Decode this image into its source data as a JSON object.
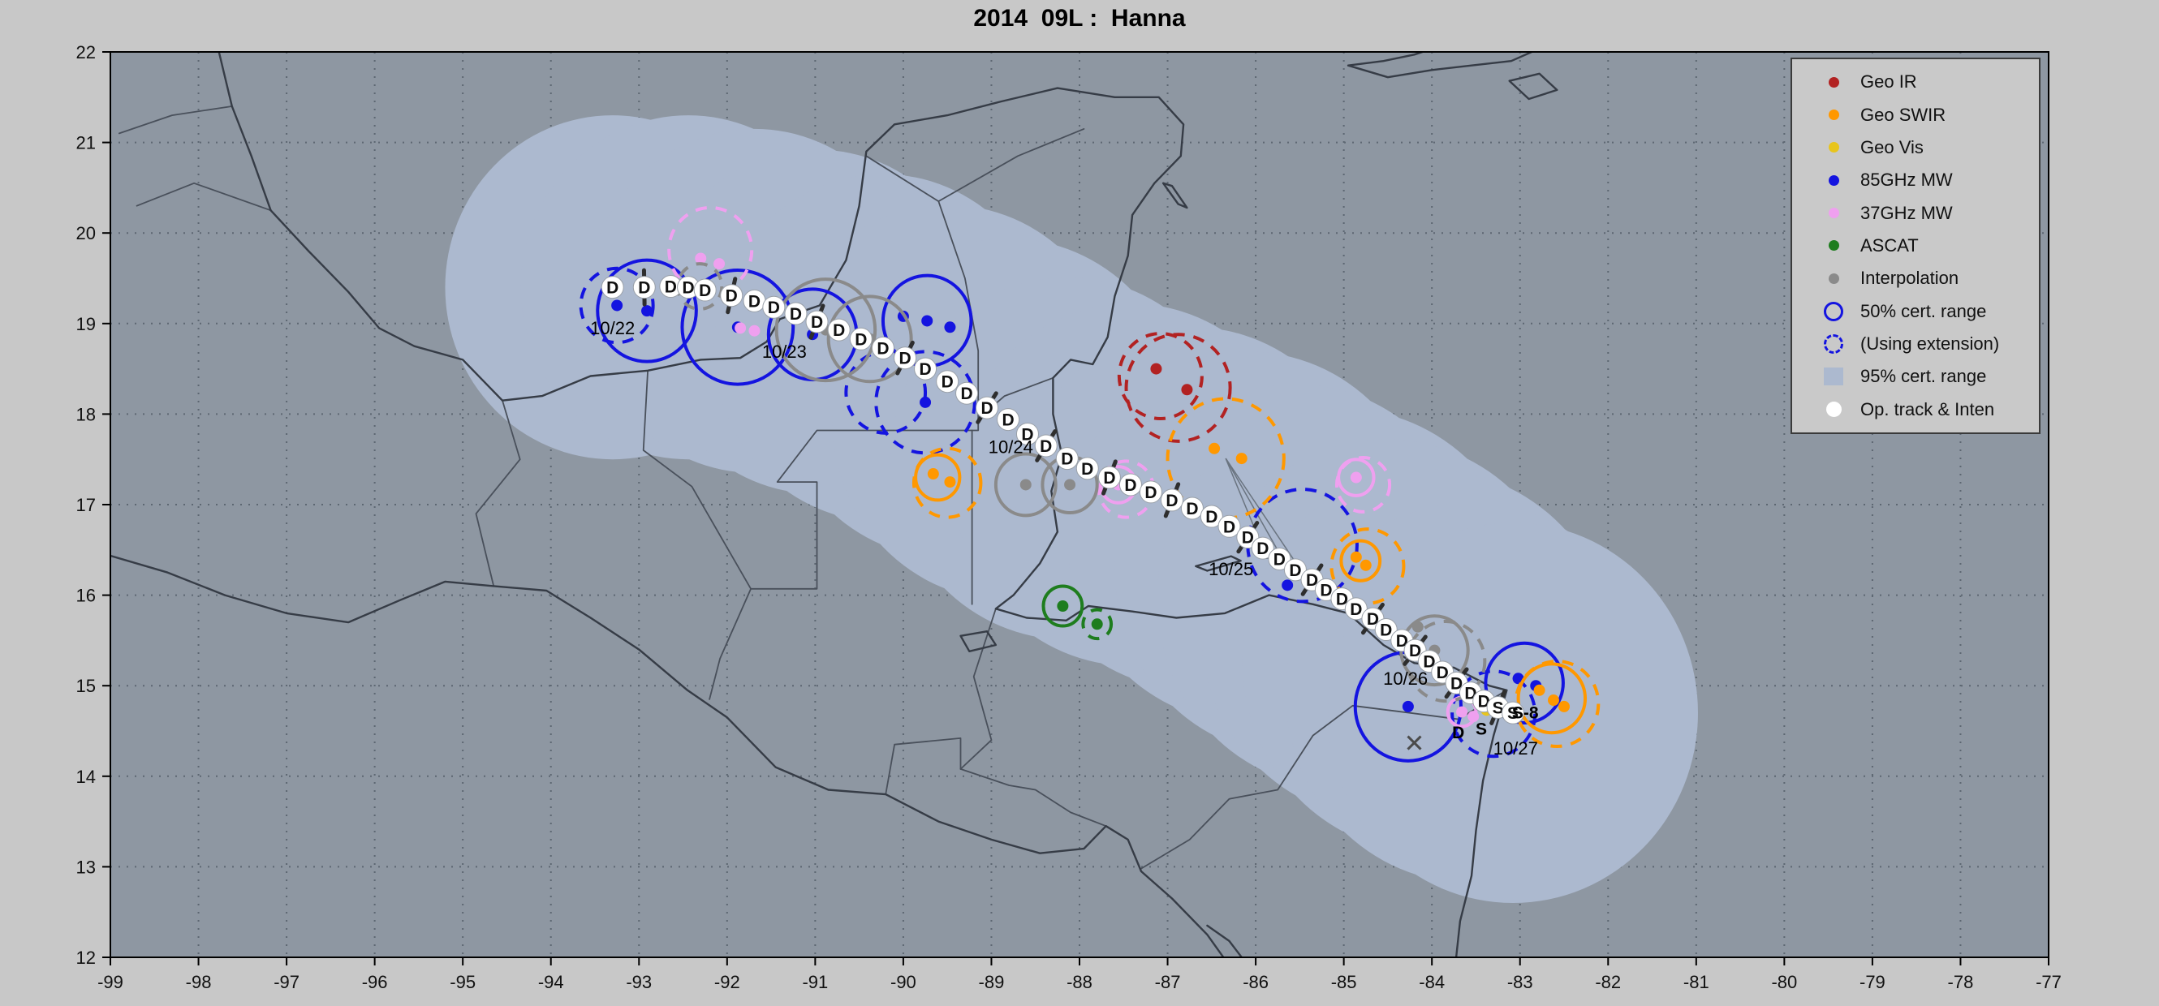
{
  "title": "2014  09L :  Hanna",
  "palette": {
    "figure_bg": "#c8c8c8",
    "plot_bg": "#8e97a2",
    "swath": "#acb9cf",
    "grid": "#5d6772",
    "coast": "#363c46",
    "border_line": "#49505b",
    "frame": "#000000",
    "track_fill": "#ffffff",
    "track_edge": "#9aa0a8",
    "track_letter": "#111111",
    "barb": "#2e2e2e",
    "axis_text": "#111111",
    "fan_line": "#6a7480",
    "x_mark": "#4b4b4b",
    "sensors": {
      "ir": "#b22222",
      "swir": "#ff9800",
      "vis": "#e8c51d",
      "mw85": "#1414e0",
      "mw37": "#efa0ef",
      "ascat": "#1e7d1e",
      "interp": "#8a8a8a"
    }
  },
  "legend": {
    "items": [
      {
        "label": "Geo IR",
        "marker": "dot",
        "color": "#b22222"
      },
      {
        "label": "Geo SWIR",
        "marker": "dot",
        "color": "#ff9800"
      },
      {
        "label": "Geo Vis",
        "marker": "dot",
        "color": "#e8c51d"
      },
      {
        "label": "85GHz MW",
        "marker": "dot",
        "color": "#1414e0"
      },
      {
        "label": "37GHz MW",
        "marker": "dot",
        "color": "#efa0ef"
      },
      {
        "label": "ASCAT",
        "marker": "dot",
        "color": "#1e7d1e"
      },
      {
        "label": "Interpolation",
        "marker": "dot",
        "color": "#8a8a8a"
      },
      {
        "label": "50% cert. range",
        "marker": "open-circle",
        "color": "#1414e0"
      },
      {
        "label": "(Using extension)",
        "marker": "dashed-circle",
        "color": "#1414e0"
      },
      {
        "label": "95% cert. range",
        "marker": "patch",
        "color": "#acb9cf"
      },
      {
        "label": "Op. track & Inten",
        "marker": "white-dot",
        "color": "#ffffff"
      }
    ]
  },
  "chart_data": {
    "type": "scatter",
    "title": "2014 09L : Hanna",
    "year": "2014",
    "storm_id": "09L",
    "storm_name": "Hanna",
    "xlim": [
      -99,
      -77
    ],
    "ylim": [
      12,
      22
    ],
    "xticks": [
      -99,
      -98,
      -97,
      -96,
      -95,
      -94,
      -93,
      -92,
      -91,
      -90,
      -89,
      -88,
      -87,
      -86,
      -85,
      -84,
      -83,
      -82,
      -81,
      -80,
      -79,
      -78,
      -77
    ],
    "yticks": [
      12,
      13,
      14,
      15,
      16,
      17,
      18,
      19,
      20,
      21,
      22
    ],
    "grid": true,
    "legend_position": "top-right",
    "track": [
      [
        -93.3,
        19.4,
        "D"
      ],
      [
        -92.94,
        19.4,
        "D"
      ],
      [
        -92.64,
        19.41,
        "D"
      ],
      [
        -92.44,
        19.4,
        "D"
      ],
      [
        -92.25,
        19.37,
        "D"
      ],
      [
        -91.95,
        19.31,
        "D"
      ],
      [
        -91.69,
        19.25,
        "D"
      ],
      [
        -91.47,
        19.18,
        "D"
      ],
      [
        -91.22,
        19.11,
        "D"
      ],
      [
        -90.98,
        19.02,
        "D"
      ],
      [
        -90.73,
        18.93,
        "D"
      ],
      [
        -90.48,
        18.83,
        "D"
      ],
      [
        -90.23,
        18.73,
        "D"
      ],
      [
        -89.98,
        18.62,
        "D"
      ],
      [
        -89.75,
        18.5,
        "D"
      ],
      [
        -89.5,
        18.36,
        "D"
      ],
      [
        -89.28,
        18.23,
        "D"
      ],
      [
        -89.05,
        18.07,
        "D"
      ],
      [
        -88.81,
        17.94,
        "D"
      ],
      [
        -88.59,
        17.78,
        "D"
      ],
      [
        -88.38,
        17.65,
        "D"
      ],
      [
        -88.14,
        17.51,
        "D"
      ],
      [
        -87.91,
        17.4,
        "D"
      ],
      [
        -87.66,
        17.3,
        "D"
      ],
      [
        -87.42,
        17.22,
        "D"
      ],
      [
        -87.19,
        17.14,
        "D"
      ],
      [
        -86.95,
        17.05,
        "D"
      ],
      [
        -86.72,
        16.96,
        "D"
      ],
      [
        -86.5,
        16.87,
        "D"
      ],
      [
        -86.3,
        16.76,
        "D"
      ],
      [
        -86.09,
        16.64,
        "D"
      ],
      [
        -85.92,
        16.52,
        "D"
      ],
      [
        -85.73,
        16.4,
        "D"
      ],
      [
        -85.55,
        16.28,
        "D"
      ],
      [
        -85.36,
        16.17,
        "D"
      ],
      [
        -85.2,
        16.06,
        "D"
      ],
      [
        -85.02,
        15.96,
        "D"
      ],
      [
        -84.86,
        15.85,
        "D"
      ],
      [
        -84.67,
        15.74,
        "D"
      ],
      [
        -84.52,
        15.62,
        "D"
      ],
      [
        -84.34,
        15.5,
        "D"
      ],
      [
        -84.19,
        15.39,
        "D"
      ],
      [
        -84.03,
        15.27,
        "D"
      ],
      [
        -83.88,
        15.15,
        "D"
      ],
      [
        -83.72,
        15.03,
        "D"
      ],
      [
        -83.56,
        14.92,
        "D"
      ],
      [
        -83.41,
        14.83,
        "D"
      ],
      [
        -83.25,
        14.76,
        "S"
      ],
      [
        -83.08,
        14.7,
        "S"
      ]
    ],
    "dates": [
      {
        "label": "10/22",
        "lon": -93.3,
        "lat": 18.88
      },
      {
        "label": "10/23",
        "lon": -91.35,
        "lat": 18.62
      },
      {
        "label": "10/24",
        "lon": -88.78,
        "lat": 17.57
      },
      {
        "label": "10/25",
        "lon": -86.28,
        "lat": 16.22
      },
      {
        "label": "10/26",
        "lon": -84.3,
        "lat": 15.01
      },
      {
        "label": "10/27",
        "lon": -83.05,
        "lat": 14.24
      }
    ],
    "extra_labels": [
      {
        "t": "D",
        "lon": -83.7,
        "lat": 14.42
      },
      {
        "t": "S",
        "lon": -83.44,
        "lat": 14.46
      },
      {
        "t": "S-8",
        "lon": -82.94,
        "lat": 14.64
      }
    ],
    "x_marks": [
      [
        -84.2,
        14.37
      ]
    ],
    "barb_indices": [
      1,
      5,
      9,
      13,
      17,
      20,
      23,
      26,
      30,
      34,
      38,
      41,
      44,
      47
    ],
    "swath": [
      [
        -93.3,
        19.4,
        1.9
      ],
      [
        -92.44,
        19.4,
        1.9
      ],
      [
        -91.69,
        19.25,
        1.9
      ],
      [
        -90.98,
        19.02,
        1.9
      ],
      [
        -90.23,
        18.73,
        1.92
      ],
      [
        -89.5,
        18.36,
        1.95
      ],
      [
        -88.81,
        17.94,
        2.0
      ],
      [
        -88.14,
        17.51,
        2.0
      ],
      [
        -87.42,
        17.22,
        2.0
      ],
      [
        -86.72,
        16.96,
        2.0
      ],
      [
        -86.09,
        16.64,
        2.05
      ],
      [
        -85.55,
        16.28,
        2.05
      ],
      [
        -85.02,
        15.96,
        2.1
      ],
      [
        -84.52,
        15.62,
        2.1
      ],
      [
        -84.03,
        15.27,
        2.12
      ],
      [
        -83.56,
        14.92,
        2.1
      ],
      [
        -83.08,
        14.7,
        2.1
      ]
    ],
    "fan_lines": [
      {
        "from": [
          -86.34,
          17.51
        ],
        "to": [
          [
            -85.92,
            16.52
          ],
          [
            -85.66,
            16.34
          ],
          [
            -85.45,
            16.22
          ]
        ]
      }
    ],
    "fixes": [
      {
        "s": "mw85",
        "lon": -92.91,
        "lat": 19.14,
        "r": 0.56,
        "st": "solid",
        "dots": [
          [
            -92.91,
            19.14
          ]
        ]
      },
      {
        "s": "mw85",
        "lon": -93.25,
        "lat": 19.2,
        "r": 0.41,
        "st": "dashed",
        "dots": [
          [
            -93.25,
            19.2
          ]
        ]
      },
      {
        "s": "mw85",
        "lon": -91.88,
        "lat": 18.96,
        "r": 0.63,
        "st": "solid",
        "dots": [
          [
            -91.88,
            18.96
          ]
        ]
      },
      {
        "s": "mw85",
        "lon": -91.03,
        "lat": 18.88,
        "r": 0.5,
        "st": "solid",
        "dots": [
          [
            -91.03,
            18.88
          ]
        ]
      },
      {
        "s": "mw85",
        "lon": -89.73,
        "lat": 19.03,
        "r": 0.5,
        "st": "solid",
        "dots": [
          [
            -90.0,
            19.08
          ],
          [
            -89.47,
            18.96
          ],
          [
            -89.73,
            19.03
          ]
        ]
      },
      {
        "s": "mw85",
        "lon": -89.75,
        "lat": 18.13,
        "r": 0.56,
        "st": "dashed",
        "dots": [
          [
            -89.75,
            18.13
          ]
        ]
      },
      {
        "s": "mw85",
        "lon": -90.2,
        "lat": 18.24,
        "r": 0.45,
        "st": "dashed",
        "dots": []
      },
      {
        "s": "mw85",
        "lon": -85.47,
        "lat": 16.55,
        "r": 0.62,
        "st": "dashed",
        "dots": [
          [
            -85.64,
            16.11
          ]
        ]
      },
      {
        "s": "mw85",
        "lon": -84.27,
        "lat": 14.77,
        "r": 0.6,
        "st": "solid",
        "dots": [
          [
            -84.27,
            14.77
          ]
        ]
      },
      {
        "s": "mw85",
        "lon": -82.95,
        "lat": 15.03,
        "r": 0.44,
        "st": "solid",
        "dots": [
          [
            -83.02,
            15.08
          ],
          [
            -82.82,
            15.0
          ]
        ]
      },
      {
        "s": "mw85",
        "lon": -83.3,
        "lat": 14.69,
        "r": 0.47,
        "st": "dashed",
        "dots": []
      },
      {
        "s": "mw37",
        "lon": -92.19,
        "lat": 19.81,
        "r": 0.47,
        "st": "dashed",
        "dots": [
          [
            -92.3,
            19.72
          ],
          [
            -92.09,
            19.66
          ]
        ]
      },
      {
        "s": "mw37",
        "lon": -91.85,
        "lat": 18.95,
        "r": null,
        "st": "solid",
        "dots": [
          [
            -91.85,
            18.95
          ],
          [
            -91.69,
            18.92
          ]
        ]
      },
      {
        "s": "mw37",
        "lon": -87.56,
        "lat": 17.22,
        "r": 0.2,
        "st": "solid",
        "dots": [
          [
            -87.56,
            17.22
          ]
        ]
      },
      {
        "s": "mw37",
        "lon": -87.47,
        "lat": 17.17,
        "r": 0.31,
        "st": "dashed",
        "dots": []
      },
      {
        "s": "mw37",
        "lon": -84.86,
        "lat": 17.3,
        "r": 0.2,
        "st": "solid",
        "dots": [
          [
            -84.86,
            17.3
          ]
        ]
      },
      {
        "s": "mw37",
        "lon": -84.78,
        "lat": 17.22,
        "r": 0.3,
        "st": "dashed",
        "dots": []
      },
      {
        "s": "mw37",
        "lon": -83.66,
        "lat": 14.71,
        "r": 0.16,
        "st": "solid",
        "dots": [
          [
            -83.66,
            14.71
          ],
          [
            -83.53,
            14.66
          ]
        ]
      },
      {
        "s": "ir",
        "lon": -86.88,
        "lat": 18.29,
        "r": 0.59,
        "st": "dashed",
        "dots": [
          [
            -87.13,
            18.5
          ],
          [
            -86.78,
            18.27
          ]
        ]
      },
      {
        "s": "ir",
        "lon": -87.08,
        "lat": 18.42,
        "r": 0.47,
        "st": "dashed",
        "dots": []
      },
      {
        "s": "swir",
        "lon": -89.61,
        "lat": 17.3,
        "r": 0.25,
        "st": "solid",
        "dots": [
          [
            -89.66,
            17.34
          ],
          [
            -89.47,
            17.25
          ]
        ]
      },
      {
        "s": "swir",
        "lon": -89.5,
        "lat": 17.24,
        "r": 0.38,
        "st": "dashed",
        "dots": []
      },
      {
        "s": "swir",
        "lon": -86.34,
        "lat": 17.51,
        "r": 0.66,
        "st": "dashed",
        "dots": [
          [
            -86.47,
            17.62
          ],
          [
            -86.16,
            17.51
          ]
        ]
      },
      {
        "s": "swir",
        "lon": -84.81,
        "lat": 16.38,
        "r": 0.22,
        "st": "solid",
        "dots": [
          [
            -84.86,
            16.42
          ],
          [
            -84.75,
            16.33
          ]
        ]
      },
      {
        "s": "swir",
        "lon": -84.73,
        "lat": 16.32,
        "r": 0.41,
        "st": "dashed",
        "dots": []
      },
      {
        "s": "swir",
        "lon": -82.64,
        "lat": 14.86,
        "r": 0.38,
        "st": "solid",
        "dots": [
          [
            -82.78,
            14.95
          ],
          [
            -82.62,
            14.84
          ],
          [
            -82.5,
            14.77
          ]
        ]
      },
      {
        "s": "swir",
        "lon": -82.58,
        "lat": 14.8,
        "r": 0.47,
        "st": "dashed",
        "dots": []
      },
      {
        "s": "vis",
        "lon": -83.45,
        "lat": 14.79,
        "r": null,
        "st": "solid",
        "dots": [
          [
            -83.45,
            14.79
          ],
          [
            -83.38,
            14.73
          ]
        ]
      },
      {
        "s": "ascat",
        "lon": -88.19,
        "lat": 15.88,
        "r": 0.22,
        "st": "solid",
        "dots": [
          [
            -88.19,
            15.88
          ]
        ]
      },
      {
        "s": "ascat",
        "lon": -87.8,
        "lat": 15.68,
        "r": 0.16,
        "st": "dashed",
        "dots": [
          [
            -87.8,
            15.68
          ]
        ]
      },
      {
        "s": "interp",
        "lon": -90.88,
        "lat": 18.93,
        "r": 0.56,
        "st": "solid",
        "dots": [
          [
            -90.88,
            18.93
          ]
        ]
      },
      {
        "s": "interp",
        "lon": -90.38,
        "lat": 18.83,
        "r": 0.47,
        "st": "solid",
        "dots": [
          [
            -90.38,
            18.83
          ]
        ]
      },
      {
        "s": "interp",
        "lon": -88.61,
        "lat": 17.22,
        "r": 0.34,
        "st": "solid",
        "dots": [
          [
            -88.61,
            17.22
          ]
        ]
      },
      {
        "s": "interp",
        "lon": -88.11,
        "lat": 17.22,
        "r": 0.31,
        "st": "solid",
        "dots": [
          [
            -88.11,
            17.22
          ]
        ]
      },
      {
        "s": "interp",
        "lon": -83.97,
        "lat": 15.39,
        "r": 0.38,
        "st": "solid",
        "dots": [
          [
            -83.97,
            15.39
          ],
          [
            -84.16,
            15.65
          ]
        ]
      },
      {
        "s": "interp",
        "lon": -83.84,
        "lat": 15.27,
        "r": 0.44,
        "st": "dashed",
        "dots": []
      },
      {
        "s": "interp",
        "lon": -92.31,
        "lat": 19.41,
        "r": 0.25,
        "st": "dashed",
        "dots": [
          [
            -92.31,
            19.41
          ]
        ]
      },
      {
        "s": "interp",
        "lon": -86.3,
        "lat": 16.75,
        "r": null,
        "st": "solid",
        "dots": [
          [
            -86.3,
            16.75
          ]
        ]
      }
    ]
  }
}
